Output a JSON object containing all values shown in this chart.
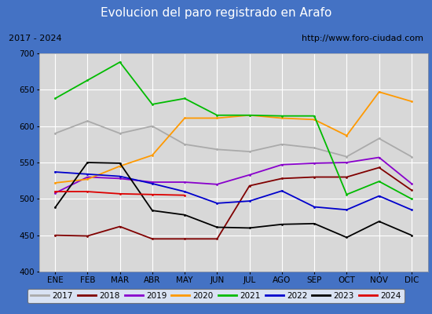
{
  "title": "Evolucion del paro registrado en Arafo",
  "subtitle_left": "2017 - 2024",
  "subtitle_right": "http://www.foro-ciudad.com",
  "xlabel_months": [
    "ENE",
    "FEB",
    "MAR",
    "ABR",
    "MAY",
    "JUN",
    "JUL",
    "AGO",
    "SEP",
    "OCT",
    "NOV",
    "DIC"
  ],
  "ylim": [
    400,
    700
  ],
  "yticks": [
    400,
    450,
    500,
    550,
    600,
    650,
    700
  ],
  "series": {
    "2017": {
      "color": "#aaaaaa",
      "values": [
        590,
        607,
        590,
        600,
        575,
        568,
        565,
        575,
        570,
        558,
        583,
        558
      ]
    },
    "2018": {
      "color": "#800000",
      "values": [
        450,
        449,
        462,
        445,
        445,
        445,
        518,
        528,
        530,
        530,
        543,
        512
      ]
    },
    "2019": {
      "color": "#8800cc",
      "values": [
        508,
        530,
        528,
        523,
        523,
        520,
        533,
        547,
        549,
        550,
        557,
        521
      ]
    },
    "2020": {
      "color": "#ff9900",
      "values": [
        522,
        527,
        545,
        560,
        611,
        611,
        615,
        611,
        609,
        587,
        647,
        634
      ]
    },
    "2021": {
      "color": "#00bb00",
      "values": [
        638,
        663,
        688,
        630,
        638,
        615,
        615,
        614,
        614,
        506,
        524,
        500
      ]
    },
    "2022": {
      "color": "#0000cc",
      "values": [
        537,
        534,
        531,
        521,
        510,
        494,
        497,
        511,
        489,
        485,
        504,
        485
      ]
    },
    "2023": {
      "color": "#000000",
      "values": [
        488,
        550,
        549,
        484,
        478,
        461,
        460,
        465,
        466,
        447,
        469,
        450
      ]
    },
    "2024": {
      "color": "#dd0000",
      "values": [
        510,
        510,
        507,
        506,
        505,
        null,
        null,
        null,
        null,
        null,
        null,
        null
      ]
    }
  },
  "title_bg": "#4472c4",
  "title_color": "#ffffff",
  "title_fontsize": 11,
  "header_bg": "#f0f0f0",
  "plot_bg_color": "#d8d8d8",
  "grid_color": "#ffffff",
  "legend_bg": "#ffffff",
  "border_color": "#666666"
}
